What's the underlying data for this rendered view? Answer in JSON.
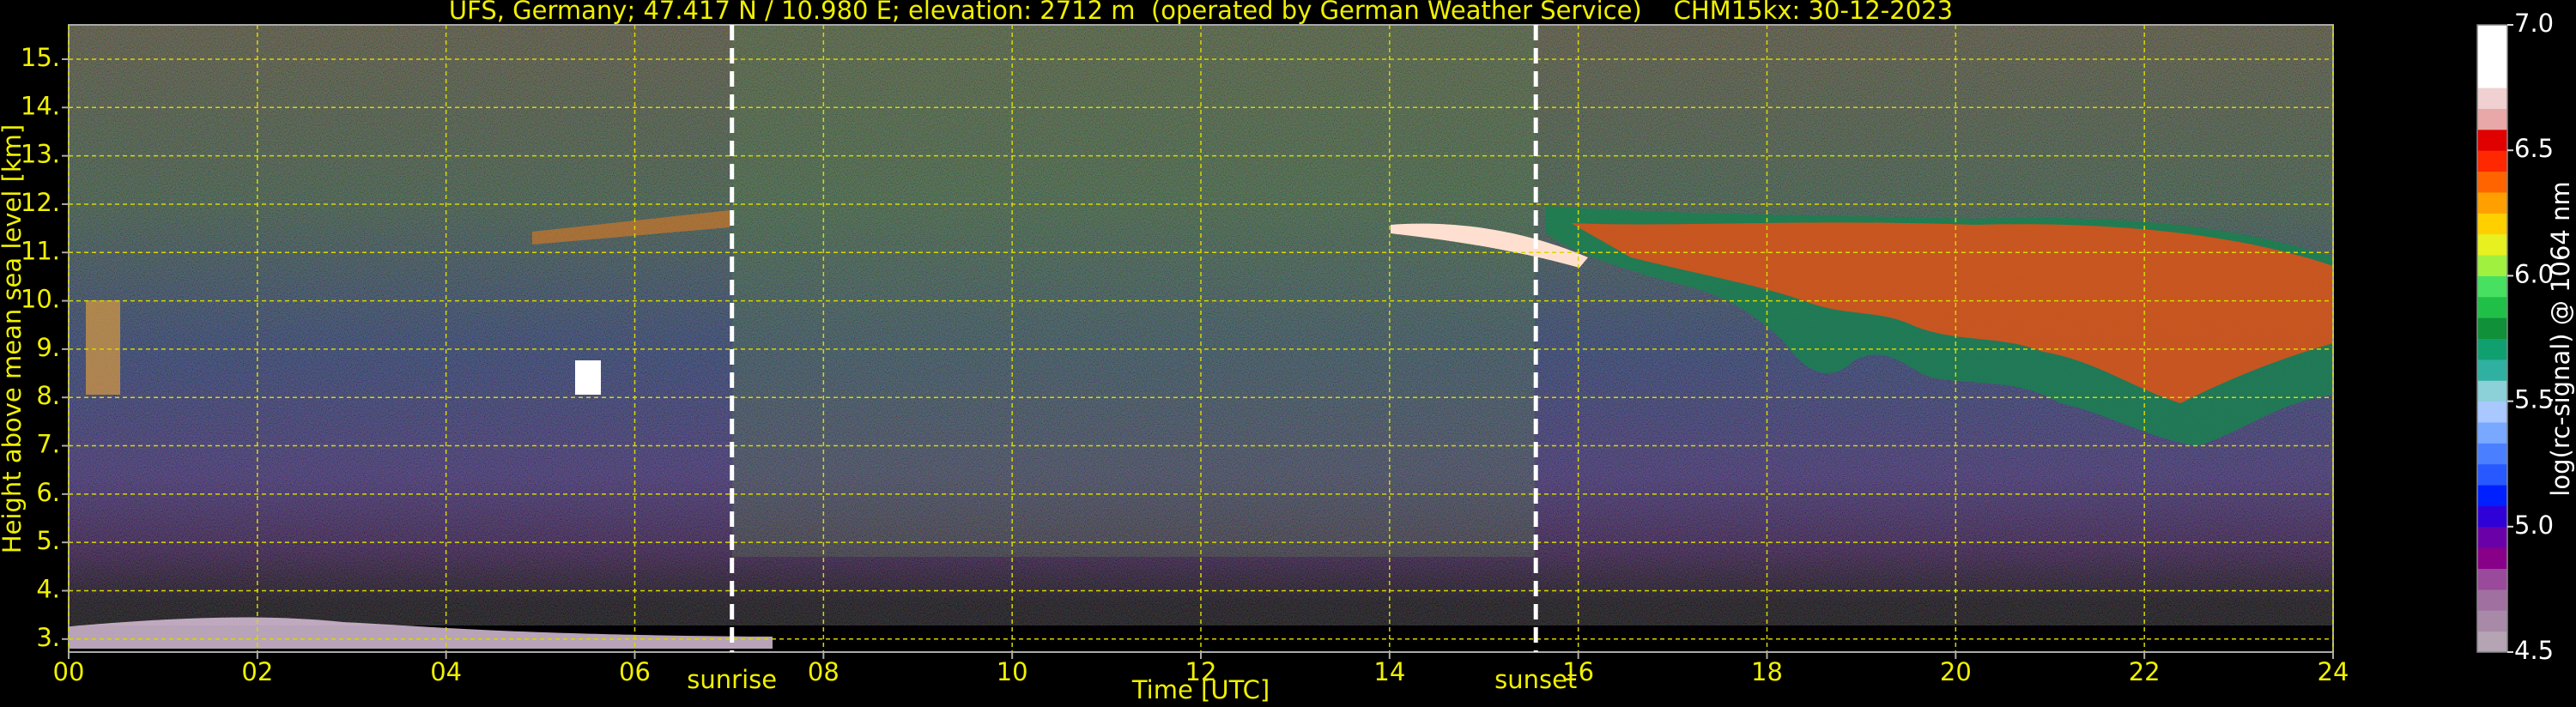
{
  "chart_data": {
    "type": "heatmap",
    "title": "UFS, Germany; 47.417 N / 10.980 E; elevation: 2712 m  (operated by German Weather Service)    CHM15kx: 30-12-2023",
    "x_label": "Time [UTC]",
    "y_label": "Height above mean sea level [km]",
    "xlim": [
      0,
      24
    ],
    "xticks": [
      {
        "value": 0,
        "label": "00"
      },
      {
        "value": 2,
        "label": "02"
      },
      {
        "value": 4,
        "label": "04"
      },
      {
        "value": 6,
        "label": "06"
      },
      {
        "value": 8,
        "label": "08"
      },
      10,
      12,
      14,
      16,
      18,
      20,
      22,
      24
    ],
    "ylim": [
      2.73,
      15.71
    ],
    "yticks": [
      {
        "value": 3,
        "label": "3."
      },
      {
        "value": 4,
        "label": "4."
      },
      {
        "value": 5,
        "label": "5."
      },
      {
        "value": 6,
        "label": "6."
      },
      {
        "value": 7,
        "label": "7."
      },
      {
        "value": 8,
        "label": "8."
      },
      {
        "value": 9,
        "label": "9."
      },
      {
        "value": 10,
        "label": "10."
      },
      {
        "value": 11,
        "label": "11."
      },
      {
        "value": 12,
        "label": "12."
      },
      {
        "value": 13,
        "label": "13."
      },
      {
        "value": 14,
        "label": "14."
      },
      {
        "value": 15,
        "label": "15."
      }
    ],
    "grid": true,
    "annotations": [
      {
        "text": "sunrise",
        "x": 7.03
      },
      {
        "text": "sunset",
        "x": 15.55
      }
    ],
    "colorbar": {
      "label": "log(rc-signal) @ 1064 nm",
      "lim": [
        4.5,
        7.0
      ],
      "ticks": [
        {
          "value": 4.5,
          "label": "4.5"
        },
        {
          "value": 5.0,
          "label": "5.0"
        },
        {
          "value": 5.5,
          "label": "5.5"
        },
        {
          "value": 6.0,
          "label": "6.0"
        },
        {
          "value": 6.5,
          "label": "6.5"
        },
        {
          "value": 7.0,
          "label": "7.0"
        }
      ],
      "colormap": [
        "#b4a4b4",
        "#a88aa8",
        "#a070a0",
        "#9a4a9a",
        "#880088",
        "#6a00a8",
        "#3000d8",
        "#0020ff",
        "#2858ff",
        "#4a80ff",
        "#78a8ff",
        "#a8c8ff",
        "#8cd0d8",
        "#30b0a0",
        "#10a070",
        "#109038",
        "#20c048",
        "#48e060",
        "#a0f040",
        "#e8f020",
        "#ffd000",
        "#ffa000",
        "#ff6400",
        "#ff2800",
        "#e00000",
        "#e8a8a8",
        "#f0d0d0",
        "#ffffff",
        "#ffffff",
        "#ffffff"
      ]
    }
  }
}
